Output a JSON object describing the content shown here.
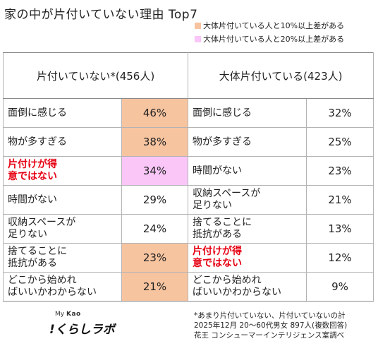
{
  "chart_data": {
    "type": "table",
    "title": "家の中が片付いていない理由 Top7",
    "legend": [
      {
        "label": "大体片付いている人と10%以上差がある",
        "color": "#f7c4a0"
      },
      {
        "label": "大体片付いている人と20%以上差がある",
        "color": "#f9c6f7"
      }
    ],
    "columns": [
      {
        "header": "片付いていない*(456人)",
        "rows": [
          {
            "label": "面倒に感じる",
            "value": "46%",
            "highlight": "10"
          },
          {
            "label": "物が多すぎる",
            "value": "38%",
            "highlight": "10"
          },
          {
            "label": "片付けが得意ではない",
            "value": "34%",
            "highlight": "20"
          },
          {
            "label": "時間がない",
            "value": "29%",
            "highlight": ""
          },
          {
            "label": "収納スペースが足りない",
            "value": "24%",
            "highlight": ""
          },
          {
            "label": "捨てることに抵抗がある",
            "value": "23%",
            "highlight": "10"
          },
          {
            "label": "どこから始めればいいかわからない",
            "value": "21%",
            "highlight": "10"
          }
        ]
      },
      {
        "header": "大体片付いている(423人)",
        "rows": [
          {
            "label": "面倒に感じる",
            "value": "32%"
          },
          {
            "label": "物が多すぎる",
            "value": "25%"
          },
          {
            "label": "時間がない",
            "value": "23%"
          },
          {
            "label": "収納スペースが足りない",
            "value": "21%"
          },
          {
            "label": "捨てることに抵抗がある",
            "value": "13%"
          },
          {
            "label": "片付けが得意ではない",
            "value": "12%"
          },
          {
            "label": "どこから始めればいいかわからない",
            "value": "9%"
          }
        ]
      }
    ],
    "emphasized_label": "片付けが得意ではない",
    "emphasis_color": "#e60012"
  },
  "logo": {
    "my": "My",
    "kao": "Kao",
    "brand": "くらしラボ"
  },
  "notes": [
    "*あまり片付いていない、片付いていないの計",
    "2025年12月 20～60代男女 897人(複数回答)",
    "花王 コンシューマーインテリジェンス室調べ"
  ]
}
